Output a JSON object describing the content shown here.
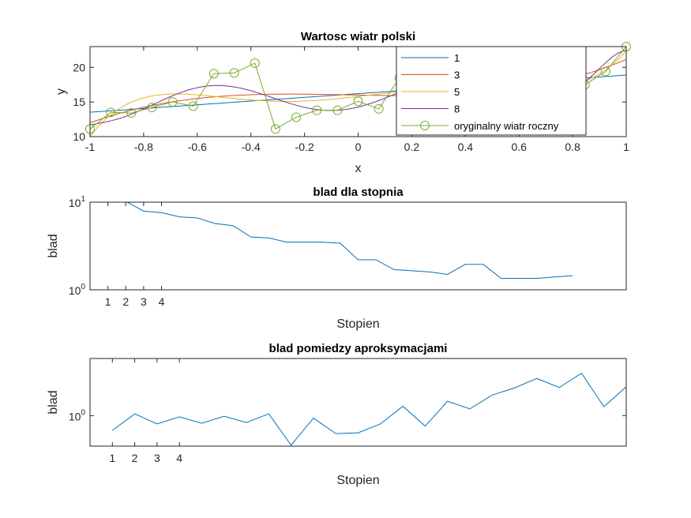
{
  "chart_data": [
    {
      "type": "line",
      "title": "Wartosc wiatr polski",
      "xlabel": "x",
      "ylabel": "y",
      "xlim": [
        -1,
        1
      ],
      "ylim": [
        10,
        23
      ],
      "xticks": [
        -1,
        -0.8,
        -0.6,
        -0.4,
        -0.2,
        0,
        0.2,
        0.4,
        0.6,
        0.8,
        1
      ],
      "xtick_labels": [
        "-1",
        "-0.8",
        "-0.6",
        "-0.4",
        "-0.2",
        "0",
        "0.2",
        "0.4",
        "0.6",
        "0.8",
        "1"
      ],
      "yticks": [
        10,
        15,
        20
      ],
      "ytick_labels": [
        "10",
        "15",
        "20"
      ],
      "legend_position": "top-right",
      "series": [
        {
          "name": "1",
          "color": "#0072BD",
          "marker": "none",
          "poly": "1"
        },
        {
          "name": "3",
          "color": "#D95319",
          "marker": "none",
          "poly": "3"
        },
        {
          "name": "5",
          "color": "#EDB120",
          "marker": "none",
          "poly": "5"
        },
        {
          "name": "8",
          "color": "#7E2F8E",
          "marker": "none",
          "poly": "8"
        },
        {
          "name": "oryginalny wiatr roczny",
          "color": "#77AC30",
          "marker": "circle",
          "x": [
            -1,
            -0.923,
            -0.846,
            -0.769,
            -0.692,
            -0.615,
            -0.538,
            -0.462,
            -0.385,
            -0.308,
            -0.231,
            -0.154,
            -0.077,
            0,
            0.077,
            0.154,
            0.231,
            0.308,
            0.385,
            0.462,
            0.538,
            0.615,
            0.692,
            0.769,
            0.846,
            0.923,
            1
          ],
          "y": [
            11.1,
            13.5,
            13.4,
            14.2,
            15.0,
            14.4,
            19.1,
            19.2,
            20.6,
            11.1,
            12.8,
            13.8,
            13.8,
            15.1,
            14.0,
            18.5,
            19.0,
            18.0,
            17.5,
            17.0,
            16.5,
            16.0,
            17.0,
            17.0,
            17.5,
            19.4,
            23.0
          ]
        }
      ]
    },
    {
      "type": "line",
      "title": "blad dla stopnia",
      "xlabel": "Stopien",
      "ylabel": "blad",
      "yscale": "log",
      "xlim": [
        0,
        30
      ],
      "ylim": [
        1,
        10
      ],
      "xticks": [
        1,
        2,
        3,
        4
      ],
      "xtick_labels": [
        "1",
        "2",
        "3",
        "4"
      ],
      "ytick_labels": [
        {
          "base": "10",
          "exp": "1",
          "value": 10
        },
        {
          "base": "10",
          "exp": "0",
          "value": 1
        }
      ],
      "series": [
        {
          "name": "blad",
          "color": "#0072BD",
          "x": [
            1,
            2,
            3,
            4,
            5,
            6,
            7,
            8,
            9,
            10,
            11,
            12,
            13,
            14,
            15,
            16,
            17,
            18,
            19,
            20,
            21,
            22,
            23,
            24,
            25,
            26,
            27
          ],
          "y": [
            10.2,
            10.2,
            7.9,
            7.6,
            6.8,
            6.6,
            5.7,
            5.4,
            4.0,
            3.9,
            3.5,
            3.5,
            3.5,
            3.4,
            2.2,
            2.2,
            1.7,
            1.65,
            1.6,
            1.5,
            1.95,
            1.95,
            1.35,
            1.35,
            1.35,
            1.4,
            1.45
          ]
        }
      ]
    },
    {
      "type": "line",
      "title": "blad pomiedzy aproksymacjami",
      "xlabel": "Stopien",
      "ylabel": "blad",
      "yscale": "log",
      "xlim": [
        0,
        24
      ],
      "ylim": [
        0.6,
        2.6
      ],
      "xticks": [
        1,
        2,
        3,
        4
      ],
      "xtick_labels": [
        "1",
        "2",
        "3",
        "4"
      ],
      "ytick_labels": [
        {
          "base": "10",
          "exp": "0",
          "value": 1
        }
      ],
      "series": [
        {
          "name": "blad",
          "color": "#0072BD",
          "x": [
            1,
            2,
            3,
            4,
            5,
            6,
            7,
            8,
            9,
            10,
            11,
            12,
            13,
            14,
            15,
            16,
            17,
            18,
            19,
            20,
            21,
            22,
            23,
            24
          ],
          "y": [
            0.78,
            1.03,
            0.87,
            0.98,
            0.88,
            0.99,
            0.89,
            1.03,
            0.61,
            0.96,
            0.74,
            0.75,
            0.87,
            1.17,
            0.84,
            1.27,
            1.12,
            1.41,
            1.59,
            1.86,
            1.6,
            2.03,
            1.16,
            1.62
          ]
        }
      ]
    }
  ]
}
